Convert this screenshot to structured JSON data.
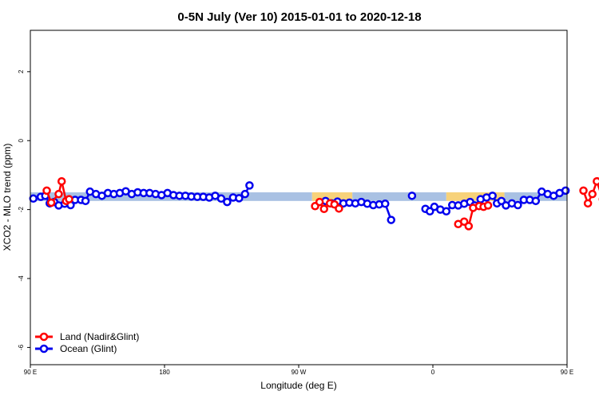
{
  "chart_data": {
    "type": "line",
    "title": "0-5N July (Ver 10)   2015-01-01 to 2020-12-18",
    "xlabel": "Longitude (deg E)",
    "ylabel": "XCO2 - MLO trend (ppm)",
    "x_axis_domain": [
      90,
      450
    ],
    "xlim": [
      90,
      450
    ],
    "ylim": [
      -6.5,
      3.2
    ],
    "x_ticks": [
      {
        "value": 90,
        "label": "90 E"
      },
      {
        "value": 180,
        "label": "180"
      },
      {
        "value": 270,
        "label": "90 W"
      },
      {
        "value": 360,
        "label": "0"
      },
      {
        "value": 450,
        "label": "90 E"
      },
      {
        "value": 540,
        "label": "180"
      }
    ],
    "y_ticks": [
      {
        "value": 2,
        "label": "2"
      },
      {
        "value": 0,
        "label": "0"
      },
      {
        "value": -2,
        "label": "-2"
      },
      {
        "value": -4,
        "label": "-4"
      },
      {
        "value": -6,
        "label": "-6"
      }
    ],
    "legend": {
      "position": "bottom-left",
      "entries": [
        "Land (Nadir&Glint)",
        "Ocean (Glint)"
      ]
    },
    "colors": {
      "land": "#ff0000",
      "ocean": "#0000ee",
      "band_ocean": "#a9c1e3",
      "band_land": "#f7d27a"
    },
    "bands": [
      {
        "x0": 90,
        "x1": 279,
        "y0": -1.75,
        "y1": -1.5,
        "kind": "ocean"
      },
      {
        "x0": 279,
        "x1": 306,
        "y0": -1.75,
        "y1": -1.5,
        "kind": "land"
      },
      {
        "x0": 306,
        "x1": 369,
        "y0": -1.75,
        "y1": -1.5,
        "kind": "ocean"
      },
      {
        "x0": 369,
        "x1": 408,
        "y0": -1.75,
        "y1": -1.5,
        "kind": "land"
      },
      {
        "x0": 408,
        "x1": 540,
        "y0": -1.75,
        "y1": -1.5,
        "kind": "ocean"
      }
    ],
    "series": [
      {
        "name": "Land (Nadir&Glint)",
        "color": "#ff0000",
        "segments": [
          [
            [
              101,
              -1.45
            ],
            [
              104,
              -1.8
            ],
            [
              109,
              -1.55
            ],
            [
              111,
              -1.18
            ],
            [
              114,
              -1.75
            ],
            [
              116,
              -1.7
            ]
          ],
          [
            [
              281,
              -1.9
            ],
            [
              284,
              -1.78
            ],
            [
              287,
              -1.98
            ],
            [
              291,
              -1.82
            ],
            [
              294,
              -1.85
            ],
            [
              297,
              -1.97
            ]
          ],
          [
            [
              377,
              -2.42
            ],
            [
              381,
              -2.35
            ],
            [
              384,
              -2.48
            ],
            [
              387,
              -1.95
            ],
            [
              391,
              -1.9
            ],
            [
              394,
              -1.92
            ],
            [
              397,
              -1.88
            ]
          ],
          [
            [
              461,
              -1.45
            ],
            [
              464,
              -1.82
            ],
            [
              467,
              -1.55
            ],
            [
              470,
              -1.18
            ],
            [
              474,
              -1.7
            ]
          ]
        ]
      },
      {
        "name": "Ocean (Glint)",
        "color": "#0000ee",
        "segments": [
          [
            [
              92,
              -1.68
            ],
            [
              97,
              -1.63
            ],
            [
              100,
              -1.6
            ],
            [
              103,
              -1.82
            ],
            [
              106,
              -1.78
            ],
            [
              109,
              -1.88
            ],
            [
              113,
              -1.83
            ],
            [
              117,
              -1.87
            ],
            [
              120,
              -1.72
            ],
            [
              124,
              -1.72
            ],
            [
              127,
              -1.75
            ],
            [
              130,
              -1.48
            ],
            [
              134,
              -1.55
            ],
            [
              138,
              -1.6
            ],
            [
              142,
              -1.52
            ],
            [
              146,
              -1.55
            ],
            [
              150,
              -1.52
            ],
            [
              154,
              -1.47
            ],
            [
              158,
              -1.55
            ],
            [
              162,
              -1.5
            ],
            [
              166,
              -1.52
            ],
            [
              170,
              -1.52
            ],
            [
              174,
              -1.55
            ],
            [
              178,
              -1.58
            ],
            [
              182,
              -1.52
            ],
            [
              186,
              -1.58
            ],
            [
              190,
              -1.6
            ],
            [
              194,
              -1.6
            ],
            [
              198,
              -1.62
            ],
            [
              202,
              -1.63
            ],
            [
              206,
              -1.63
            ],
            [
              210,
              -1.65
            ],
            [
              214,
              -1.6
            ],
            [
              218,
              -1.68
            ],
            [
              222,
              -1.78
            ],
            [
              226,
              -1.65
            ],
            [
              230,
              -1.67
            ],
            [
              234,
              -1.55
            ],
            [
              237,
              -1.3
            ]
          ],
          [
            [
              288,
              -1.75
            ],
            [
              292,
              -1.82
            ],
            [
              296,
              -1.77
            ],
            [
              300,
              -1.82
            ],
            [
              304,
              -1.8
            ],
            [
              308,
              -1.82
            ],
            [
              312,
              -1.78
            ],
            [
              316,
              -1.83
            ],
            [
              320,
              -1.87
            ],
            [
              324,
              -1.85
            ],
            [
              328,
              -1.83
            ],
            [
              332,
              -2.3
            ]
          ],
          [
            [
              346,
              -1.6
            ]
          ],
          [
            [
              355,
              -1.98
            ],
            [
              358,
              -2.05
            ],
            [
              361,
              -1.92
            ],
            [
              365,
              -2.0
            ],
            [
              369,
              -2.05
            ],
            [
              373,
              -1.87
            ],
            [
              377,
              -1.88
            ],
            [
              381,
              -1.83
            ],
            [
              385,
              -1.78
            ],
            [
              388,
              -1.88
            ],
            [
              392,
              -1.7
            ],
            [
              396,
              -1.65
            ],
            [
              400,
              -1.6
            ],
            [
              403,
              -1.82
            ],
            [
              406,
              -1.75
            ],
            [
              409,
              -1.88
            ],
            [
              413,
              -1.82
            ],
            [
              417,
              -1.87
            ],
            [
              421,
              -1.72
            ],
            [
              425,
              -1.72
            ],
            [
              429,
              -1.75
            ],
            [
              433,
              -1.48
            ],
            [
              437,
              -1.55
            ],
            [
              441,
              -1.6
            ],
            [
              445,
              -1.52
            ],
            [
              449,
              -1.45
            ]
          ]
        ]
      }
    ]
  }
}
